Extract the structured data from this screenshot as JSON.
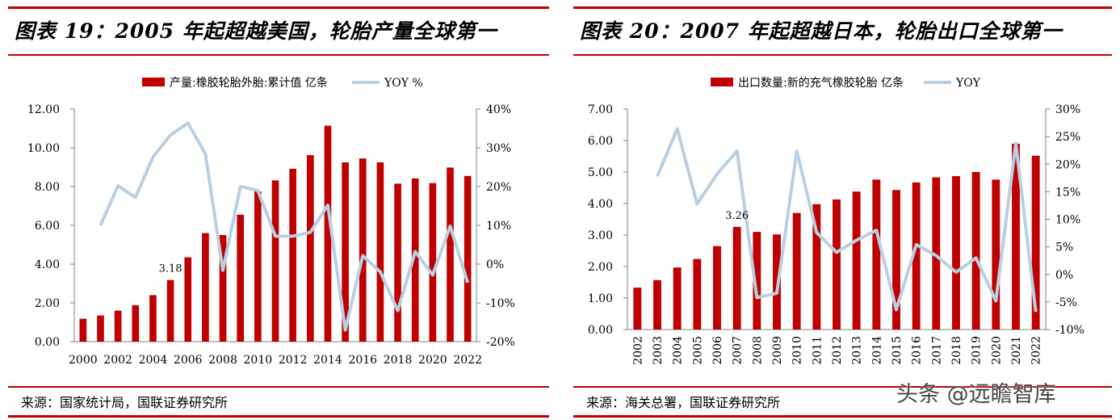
{
  "left": {
    "title": "图表 19：2005 年起超越美国，轮胎产量全球第一",
    "source": "来源：国家统计局，国联证券研究所"
  },
  "right": {
    "title": "图表 20：2007 年起超越日本，轮胎出口全球第一",
    "source": "来源：海关总署，国联证券研究所"
  },
  "watermark": "头条 @远瞻智库",
  "colors": {
    "bar": "#c00000",
    "line": "#b8cfe4",
    "rule": "#c00000"
  },
  "chart_data": [
    {
      "type": "bar",
      "categories": [
        "2000",
        "2001",
        "2002",
        "2003",
        "2004",
        "2005",
        "2006",
        "2007",
        "2008",
        "2009",
        "2010",
        "2011",
        "2012",
        "2013",
        "2014",
        "2015",
        "2016",
        "2017",
        "2018",
        "2019",
        "2020",
        "2021",
        "2022"
      ],
      "x_tick_labels": [
        "2000",
        "2002",
        "2004",
        "2006",
        "2008",
        "2010",
        "2012",
        "2014",
        "2016",
        "2018",
        "2020",
        "2022"
      ],
      "series": [
        {
          "name": "产量:橡胶轮胎外胎:累计值 亿条",
          "type": "bar",
          "axis": "left",
          "values": [
            1.18,
            1.35,
            1.6,
            1.88,
            2.4,
            3.18,
            4.35,
            5.6,
            5.5,
            6.55,
            7.75,
            8.32,
            8.92,
            9.62,
            11.14,
            9.25,
            9.45,
            9.25,
            8.15,
            8.42,
            8.18,
            8.98,
            8.55
          ]
        },
        {
          "name": "YOY %",
          "type": "line",
          "axis": "right",
          "values": [
            null,
            10.0,
            20.2,
            17.2,
            27.6,
            33.3,
            36.4,
            28.4,
            -1.6,
            20.0,
            19.0,
            7.2,
            7.2,
            8.2,
            15.2,
            -17.0,
            2.2,
            -2.0,
            -12.0,
            3.2,
            -2.8,
            9.8,
            -4.8
          ]
        }
      ],
      "yleft": {
        "ticks": [
          "0.00",
          "2.00",
          "4.00",
          "6.00",
          "8.00",
          "10.00",
          "12.00"
        ],
        "range": [
          0,
          12
        ]
      },
      "yright": {
        "ticks": [
          "-20%",
          "-10%",
          "0%",
          "10%",
          "20%",
          "30%",
          "40%"
        ],
        "range": [
          -20,
          40
        ]
      },
      "annotations": [
        {
          "category": "2005",
          "text": "3.18"
        }
      ],
      "legend": "top-center"
    },
    {
      "type": "bar",
      "categories": [
        "2002",
        "2003",
        "2004",
        "2005",
        "2006",
        "2007",
        "2008",
        "2009",
        "2010",
        "2011",
        "2012",
        "2013",
        "2014",
        "2015",
        "2016",
        "2017",
        "2018",
        "2019",
        "2020",
        "2021",
        "2022"
      ],
      "x_tick_labels": [
        "2002",
        "2003",
        "2004",
        "2005",
        "2006",
        "2007",
        "2008",
        "2009",
        "2010",
        "2011",
        "2012",
        "2013",
        "2014",
        "2015",
        "2016",
        "2017",
        "2018",
        "2019",
        "2020",
        "2021",
        "2022"
      ],
      "series": [
        {
          "name": "出口数量:新的充气橡胶轮胎 亿条",
          "type": "bar",
          "axis": "left",
          "values": [
            1.33,
            1.57,
            1.97,
            2.24,
            2.65,
            3.26,
            3.1,
            3.02,
            3.7,
            3.98,
            4.13,
            4.38,
            4.76,
            4.43,
            4.67,
            4.83,
            4.87,
            5.0,
            4.76,
            5.9,
            5.52
          ]
        },
        {
          "name": "YOY",
          "type": "line",
          "axis": "right",
          "values": [
            null,
            17.8,
            26.4,
            12.8,
            18.2,
            22.4,
            -4.2,
            -3.4,
            22.4,
            7.6,
            4.0,
            6.2,
            8.0,
            -6.4,
            5.4,
            3.4,
            0.4,
            3.0,
            -4.8,
            23.8,
            -6.8
          ]
        }
      ],
      "yleft": {
        "ticks": [
          "0.00",
          "1.00",
          "2.00",
          "3.00",
          "4.00",
          "5.00",
          "6.00",
          "7.00"
        ],
        "range": [
          0,
          7
        ]
      },
      "yright": {
        "ticks": [
          "-10%",
          "-5%",
          "0%",
          "5%",
          "10%",
          "15%",
          "20%",
          "25%",
          "30%"
        ],
        "range": [
          -10,
          30
        ]
      },
      "annotations": [
        {
          "category": "2007",
          "text": "3.26"
        }
      ],
      "legend": "top-center"
    }
  ]
}
